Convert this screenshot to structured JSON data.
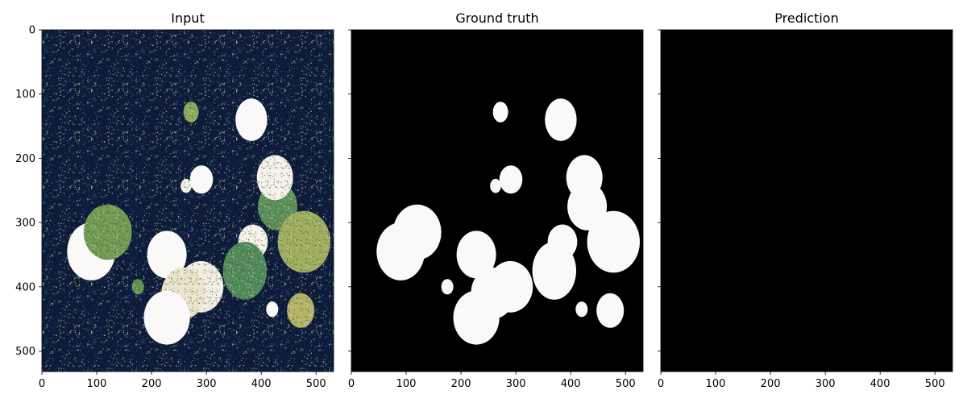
{
  "chart_data": [
    {
      "type": "heatmap",
      "title": "Input",
      "xticks": [
        0,
        100,
        200,
        300,
        400,
        500
      ],
      "yticks": [
        0,
        100,
        200,
        300,
        400,
        500
      ],
      "xlim": [
        0,
        532
      ],
      "ylim": [
        532,
        0
      ],
      "colormap": "gist_earth",
      "background": "#0e1b3a",
      "noise": true,
      "blobs": [
        {
          "cx": 90,
          "cy": 345,
          "rx": 44,
          "ry": 45,
          "color": "#fbf9f8",
          "texture": "solid"
        },
        {
          "cx": 120,
          "cy": 315,
          "rx": 44,
          "ry": 43,
          "color": "#6f9a52",
          "texture": "grain"
        },
        {
          "cx": 175,
          "cy": 400,
          "rx": 11,
          "ry": 12,
          "color": "#5f9250",
          "texture": "grain"
        },
        {
          "cx": 228,
          "cy": 350,
          "rx": 36,
          "ry": 37,
          "color": "#fbf9f8",
          "texture": "solid"
        },
        {
          "cx": 272,
          "cy": 128,
          "rx": 14,
          "ry": 16,
          "color": "#8fa85c",
          "texture": "grain"
        },
        {
          "cx": 263,
          "cy": 243,
          "rx": 10,
          "ry": 11,
          "color": "#f5f1e8",
          "texture": "grain"
        },
        {
          "cx": 291,
          "cy": 233,
          "rx": 21,
          "ry": 22,
          "color": "#fbf9f8",
          "texture": "solid"
        },
        {
          "cx": 290,
          "cy": 400,
          "rx": 41,
          "ry": 40,
          "color": "#f3efe6",
          "texture": "grain"
        },
        {
          "cx": 258,
          "cy": 410,
          "rx": 40,
          "ry": 40,
          "color": "#ece4cf",
          "texture": "grain"
        },
        {
          "cx": 228,
          "cy": 448,
          "rx": 42,
          "ry": 42,
          "color": "#fbf9f8",
          "texture": "solid"
        },
        {
          "cx": 382,
          "cy": 140,
          "rx": 29,
          "ry": 33,
          "color": "#fbf9f8",
          "texture": "solid"
        },
        {
          "cx": 385,
          "cy": 330,
          "rx": 27,
          "ry": 27,
          "color": "#f6f3ec",
          "texture": "grain"
        },
        {
          "cx": 370,
          "cy": 375,
          "rx": 40,
          "ry": 45,
          "color": "#4f8a5a",
          "texture": "grain"
        },
        {
          "cx": 430,
          "cy": 275,
          "rx": 36,
          "ry": 37,
          "color": "#5a8f58",
          "texture": "grain"
        },
        {
          "cx": 425,
          "cy": 230,
          "rx": 33,
          "ry": 35,
          "color": "#f6f3ec",
          "texture": "grain"
        },
        {
          "cx": 478,
          "cy": 330,
          "rx": 48,
          "ry": 48,
          "color": "#9fae5e",
          "texture": "grain"
        },
        {
          "cx": 420,
          "cy": 435,
          "rx": 11,
          "ry": 12,
          "color": "#fbf9f8",
          "texture": "solid"
        },
        {
          "cx": 472,
          "cy": 437,
          "rx": 25,
          "ry": 27,
          "color": "#b6b466",
          "texture": "grain"
        }
      ]
    },
    {
      "type": "heatmap",
      "title": "Ground truth",
      "xticks": [
        0,
        100,
        200,
        300,
        400,
        500
      ],
      "yticks": [
        0,
        100,
        200,
        300,
        400,
        500
      ],
      "xlim": [
        0,
        532
      ],
      "ylim": [
        532,
        0
      ],
      "colormap": "binary",
      "background": "#000000",
      "noise": false,
      "blobs": [
        {
          "cx": 90,
          "cy": 345,
          "rx": 44,
          "ry": 45,
          "color": "#fbf9f8"
        },
        {
          "cx": 120,
          "cy": 315,
          "rx": 44,
          "ry": 43,
          "color": "#fbf9f8"
        },
        {
          "cx": 175,
          "cy": 400,
          "rx": 11,
          "ry": 12,
          "color": "#fbf9f8"
        },
        {
          "cx": 228,
          "cy": 350,
          "rx": 36,
          "ry": 37,
          "color": "#fbf9f8"
        },
        {
          "cx": 272,
          "cy": 128,
          "rx": 14,
          "ry": 16,
          "color": "#fbf9f8"
        },
        {
          "cx": 263,
          "cy": 243,
          "rx": 10,
          "ry": 11,
          "color": "#fbf9f8"
        },
        {
          "cx": 291,
          "cy": 233,
          "rx": 21,
          "ry": 22,
          "color": "#fbf9f8"
        },
        {
          "cx": 290,
          "cy": 400,
          "rx": 41,
          "ry": 40,
          "color": "#fbf9f8"
        },
        {
          "cx": 258,
          "cy": 410,
          "rx": 40,
          "ry": 40,
          "color": "#fbf9f8"
        },
        {
          "cx": 228,
          "cy": 448,
          "rx": 42,
          "ry": 42,
          "color": "#fbf9f8"
        },
        {
          "cx": 382,
          "cy": 140,
          "rx": 29,
          "ry": 33,
          "color": "#fbf9f8"
        },
        {
          "cx": 385,
          "cy": 330,
          "rx": 27,
          "ry": 27,
          "color": "#fbf9f8"
        },
        {
          "cx": 370,
          "cy": 375,
          "rx": 40,
          "ry": 45,
          "color": "#fbf9f8"
        },
        {
          "cx": 430,
          "cy": 275,
          "rx": 36,
          "ry": 37,
          "color": "#fbf9f8"
        },
        {
          "cx": 425,
          "cy": 230,
          "rx": 33,
          "ry": 35,
          "color": "#fbf9f8"
        },
        {
          "cx": 478,
          "cy": 330,
          "rx": 48,
          "ry": 48,
          "color": "#fbf9f8"
        },
        {
          "cx": 420,
          "cy": 435,
          "rx": 11,
          "ry": 12,
          "color": "#fbf9f8"
        },
        {
          "cx": 472,
          "cy": 437,
          "rx": 25,
          "ry": 27,
          "color": "#fbf9f8"
        }
      ]
    },
    {
      "type": "heatmap",
      "title": "Prediction",
      "xticks": [
        0,
        100,
        200,
        300,
        400,
        500
      ],
      "yticks": [
        0,
        100,
        200,
        300,
        400,
        500
      ],
      "xlim": [
        0,
        532
      ],
      "ylim": [
        532,
        0
      ],
      "colormap": "binary",
      "background": "#000000",
      "noise": false,
      "blobs": []
    }
  ]
}
